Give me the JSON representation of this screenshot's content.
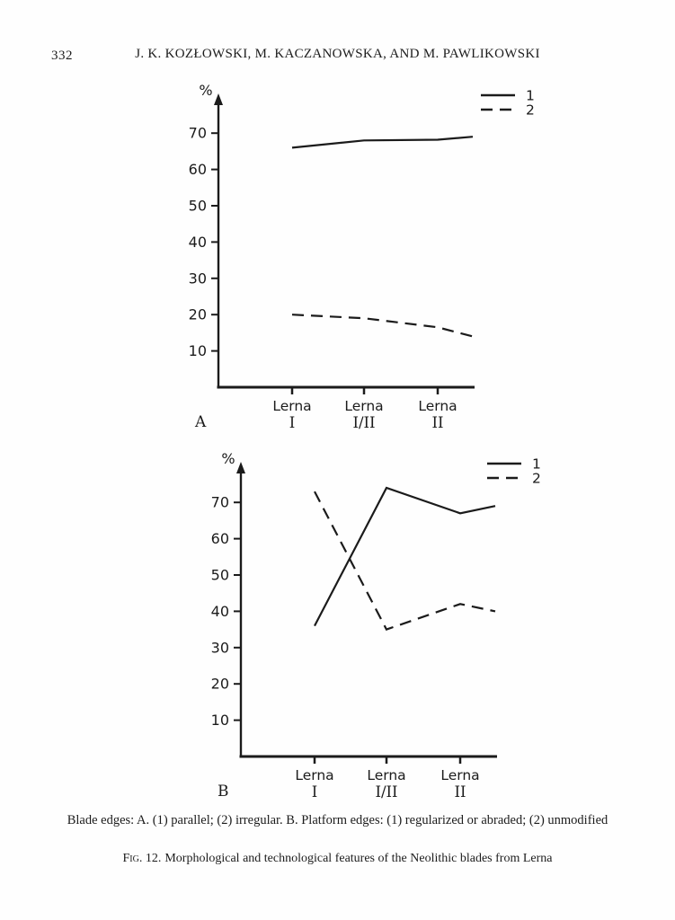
{
  "page": {
    "background": "#fefefe",
    "ink_color": "#1b1b1b"
  },
  "header": {
    "page_number": "332",
    "running_title": "J. K. KOZŁOWSKI, M. KACZANOWSKA, AND M. PAWLIKOWSKI"
  },
  "chart_data": [
    {
      "panel": "A",
      "type": "line",
      "ylabel": "%",
      "ylim": [
        0,
        79
      ],
      "y_ticks": [
        10,
        20,
        30,
        40,
        50,
        60,
        70
      ],
      "categories": [
        {
          "line1": "Lerna",
          "line2": "I"
        },
        {
          "line1": "Lerna",
          "line2": "I/II"
        },
        {
          "line1": "Lerna",
          "line2": "II"
        }
      ],
      "legend": [
        {
          "label": "1",
          "style": "solid"
        },
        {
          "label": "2",
          "style": "dashed"
        }
      ],
      "legend_position": "top-right",
      "grid": false,
      "series": [
        {
          "name": "1",
          "style": "solid",
          "values": [
            66,
            68,
            68.2
          ],
          "end_value": 69
        },
        {
          "name": "2",
          "style": "dashed",
          "values": [
            20,
            19,
            16.5
          ],
          "end_value": 14
        }
      ]
    },
    {
      "panel": "B",
      "type": "line",
      "ylabel": "%",
      "ylim": [
        0,
        79
      ],
      "y_ticks": [
        10,
        20,
        30,
        40,
        50,
        60,
        70
      ],
      "categories": [
        {
          "line1": "Lerna",
          "line2": "I"
        },
        {
          "line1": "Lerna",
          "line2": "I/II"
        },
        {
          "line1": "Lerna",
          "line2": "II"
        }
      ],
      "legend": [
        {
          "label": "1",
          "style": "solid"
        },
        {
          "label": "2",
          "style": "dashed"
        }
      ],
      "legend_position": "top-right",
      "grid": false,
      "series": [
        {
          "name": "1",
          "style": "solid",
          "values": [
            36,
            74,
            67
          ],
          "end_value": 69
        },
        {
          "name": "2",
          "style": "dashed",
          "values": [
            73,
            35,
            42
          ],
          "end_value": 40
        }
      ]
    }
  ],
  "captions": {
    "key_line": "Blade edges: A. (1) parallel; (2) irregular. B. Platform edges: (1) regularized or abraded; (2) unmodified",
    "figure_label": "Fig. 12.",
    "figure_text": "Morphological and technological features of the Neolithic blades from Lerna"
  }
}
